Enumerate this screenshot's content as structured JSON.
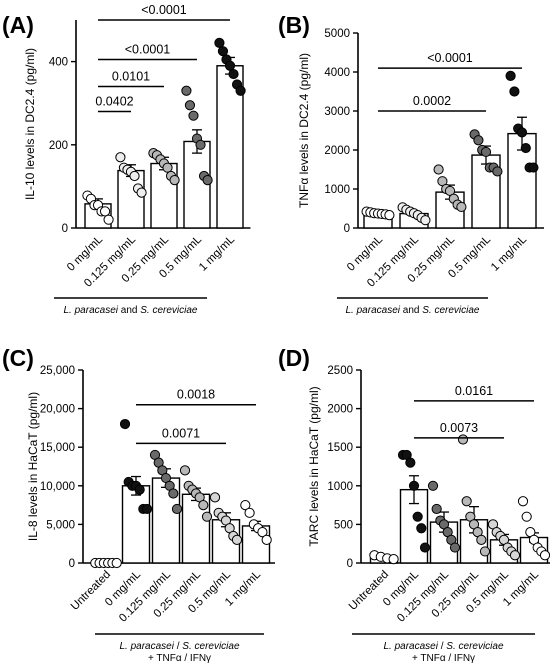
{
  "chart_data": [
    {
      "type": "bar",
      "panel_label": "(A)",
      "ylabel": "IL-10 levels in DC2.4 (pg/ml)",
      "categories": [
        "0 mg/mL",
        "0.125 mg/mL",
        "0.25 mg/mL",
        "0.5 mg/mL",
        "1 mg/mL"
      ],
      "ylim": [
        0,
        500
      ],
      "yticks": [
        "0",
        "200",
        "400"
      ],
      "ytick_values": [
        0,
        200,
        400
      ],
      "means": [
        58,
        138,
        155,
        208,
        390
      ],
      "sems": [
        12,
        14,
        15,
        28,
        20
      ],
      "points": [
        [
          78,
          70,
          55,
          55,
          40,
          40,
          20
        ],
        [
          170,
          145,
          140,
          135,
          125,
          95,
          85
        ],
        [
          180,
          175,
          165,
          155,
          145,
          125,
          115
        ],
        [
          330,
          295,
          270,
          215,
          200,
          125,
          115
        ],
        [
          445,
          425,
          405,
          390,
          370,
          345,
          330
        ]
      ],
      "point_colors": [
        "#ffffff",
        "#eeeeee",
        "#b8b8b8",
        "#6a6a6a",
        "#111111"
      ],
      "comparisons": [
        {
          "from": 0,
          "to": 1,
          "label": "0.0402",
          "y": 280
        },
        {
          "from": 0,
          "to": 2,
          "label": "0.0101",
          "y": 340
        },
        {
          "from": 0,
          "to": 3,
          "label": "<0.0001",
          "y": 405
        },
        {
          "from": 0,
          "to": 4,
          "label": "<0.0001",
          "y": 500
        }
      ],
      "treatment_label": {
        "parts": [
          {
            "text": "L. paracasei",
            "italic": true
          },
          {
            "text": " and ",
            "italic": false
          },
          {
            "text": "S. cereviciae",
            "italic": true
          }
        ]
      }
    },
    {
      "type": "bar",
      "panel_label": "(B)",
      "ylabel": "TNFα levels in DC2.4 (pg/ml)",
      "categories": [
        "0 mg/mL",
        "0.125 mg/mL",
        "0.25 mg/mL",
        "0.5 mg/mL",
        "1 mg/mL"
      ],
      "ylim": [
        0,
        5000
      ],
      "yticks": [
        "0",
        "1000",
        "2000",
        "3000",
        "4000",
        "5000"
      ],
      "ytick_values": [
        0,
        1000,
        2000,
        3000,
        4000,
        5000
      ],
      "means": [
        370,
        370,
        920,
        1870,
        2420
      ],
      "sems": [
        30,
        60,
        180,
        230,
        420
      ],
      "points": [
        [
          420,
          400,
          380,
          370,
          360,
          350,
          330
        ],
        [
          530,
          470,
          420,
          380,
          330,
          260,
          200
        ],
        [
          1500,
          1200,
          1000,
          950,
          750,
          600,
          540
        ],
        [
          2400,
          2250,
          2000,
          1950,
          1550,
          1550,
          1450
        ],
        [
          3900,
          3500,
          2550,
          2450,
          2050,
          1550,
          1550
        ]
      ],
      "point_colors": [
        "#ffffff",
        "#eeeeee",
        "#b8b8b8",
        "#6a6a6a",
        "#111111"
      ],
      "comparisons": [
        {
          "from": 0,
          "to": 3,
          "label": "0.0002",
          "y": 3000
        },
        {
          "from": 0,
          "to": 4,
          "label": "<0.0001",
          "y": 4100
        }
      ],
      "treatment_label": {
        "parts": [
          {
            "text": "L. paracasei",
            "italic": true
          },
          {
            "text": " and ",
            "italic": false
          },
          {
            "text": "S. cereviciae",
            "italic": true
          }
        ]
      }
    },
    {
      "type": "bar",
      "panel_label": "(C)",
      "ylabel": "IL-8 levels in HaCaT (pg/ml)",
      "categories": [
        "Untreated",
        "0 mg/mL",
        "0.125 mg/mL",
        "0.25 mg/mL",
        "0.5 mg/mL",
        "1 mg/mL"
      ],
      "ylim": [
        0,
        25000
      ],
      "yticks": [
        "0",
        "5,000",
        "10,000",
        "15,000",
        "20,000",
        "25,000"
      ],
      "ytick_values": [
        0,
        5000,
        10000,
        15000,
        20000,
        25000
      ],
      "means": [
        0,
        10000,
        11000,
        8900,
        5600,
        4800
      ],
      "sems": [
        0,
        1200,
        1200,
        800,
        900,
        600
      ],
      "points": [
        [
          0,
          0,
          0,
          0,
          0,
          0
        ],
        [
          18000,
          10500,
          10000,
          10000,
          9500,
          7000,
          7000
        ],
        [
          14000,
          13000,
          12000,
          11000,
          10000,
          9000,
          7000
        ],
        [
          12000,
          10000,
          9500,
          9000,
          8500,
          7500,
          6000
        ],
        [
          8500,
          6500,
          6000,
          5500,
          4500,
          3500,
          3000
        ],
        [
          7500,
          6500,
          5000,
          4500,
          4000,
          3000
        ]
      ],
      "point_colors": [
        "#ffffff",
        "#111111",
        "#6a6a6a",
        "#b8b8b8",
        "#d6d6d6",
        "#ffffff"
      ],
      "comparisons": [
        {
          "from": 1,
          "to": 4,
          "label": "0.0071",
          "y": 15500
        },
        {
          "from": 1,
          "to": 5,
          "label": "0.0018",
          "y": 20500
        }
      ],
      "treatment_label": {
        "parts": [
          {
            "text": "L. paracasei",
            "italic": true
          },
          {
            "text": " / ",
            "italic": false
          },
          {
            "text": "S. cereviciae",
            "italic": true
          }
        ],
        "line2": "+ TNFα / IFNγ"
      }
    },
    {
      "type": "bar",
      "panel_label": "(D)",
      "ylabel": "TARC levels in HaCaT (pg/ml)",
      "categories": [
        "Untreated",
        "0 mg/mL",
        "0.125 mg/mL",
        "0.25 mg/mL",
        "0.5 mg/mL",
        "1 mg/mL"
      ],
      "ylim": [
        0,
        2500
      ],
      "yticks": [
        "0",
        "500",
        "1000",
        "1500",
        "2000",
        "2500"
      ],
      "ytick_values": [
        0,
        500,
        1000,
        1500,
        2000,
        2500
      ],
      "means": [
        70,
        950,
        530,
        560,
        300,
        330
      ],
      "sems": [
        10,
        180,
        130,
        170,
        70,
        60
      ],
      "points": [
        [
          100,
          80,
          60,
          50
        ],
        [
          1400,
          1400,
          1300,
          1000,
          600,
          450,
          200
        ],
        [
          1000,
          700,
          550,
          500,
          400,
          300,
          200
        ],
        [
          1600,
          800,
          600,
          500,
          400,
          300,
          150
        ],
        [
          500,
          400,
          350,
          300,
          200,
          150,
          100
        ],
        [
          800,
          600,
          400,
          300,
          200,
          150,
          100
        ]
      ],
      "point_colors": [
        "#ffffff",
        "#111111",
        "#6a6a6a",
        "#b8b8b8",
        "#d6d6d6",
        "#ffffff"
      ],
      "comparisons": [
        {
          "from": 1,
          "to": 4,
          "label": "0.0073",
          "y": 1620
        },
        {
          "from": 1,
          "to": 5,
          "label": "0.0161",
          "y": 2100
        }
      ],
      "treatment_label": {
        "parts": [
          {
            "text": "L. paracasei",
            "italic": true
          },
          {
            "text": " / ",
            "italic": false
          },
          {
            "text": "S. cereviciae",
            "italic": true
          }
        ],
        "line2": "+ TNFα / IFNγ"
      }
    }
  ]
}
